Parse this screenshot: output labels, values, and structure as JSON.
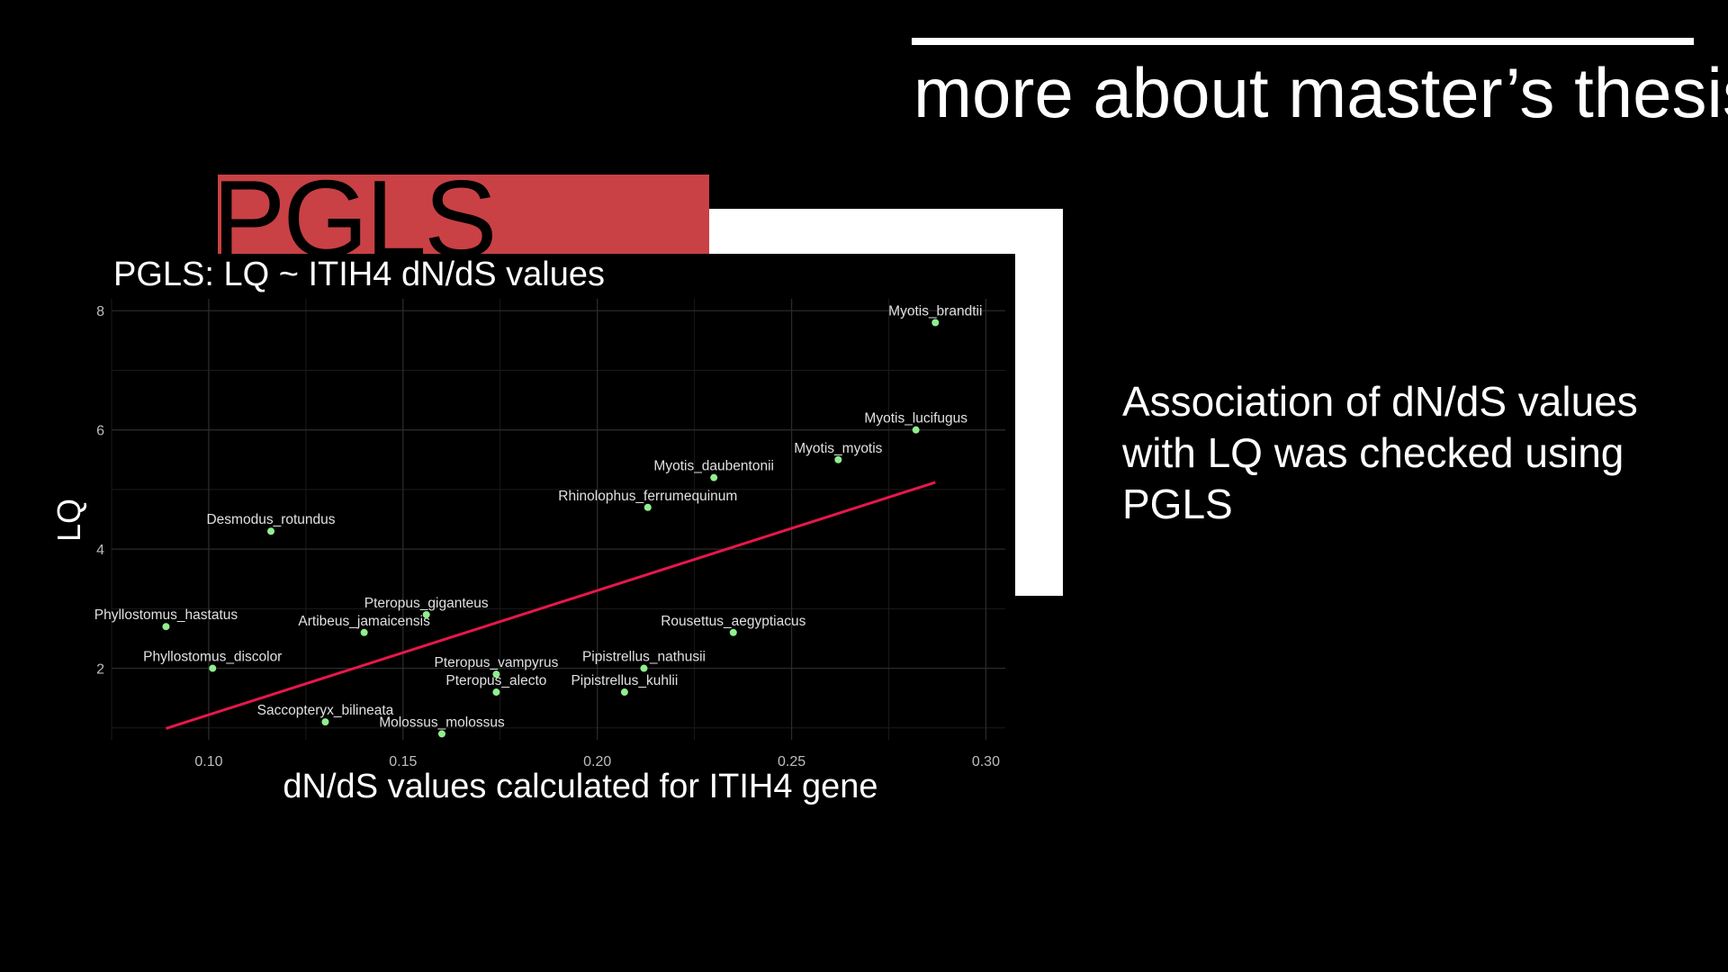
{
  "slide": {
    "title": "more about master’s thesis",
    "section_label": "PGLS",
    "side_text": "Association of dN/dS values with LQ was checked using PGLS"
  },
  "colors": {
    "background": "#000000",
    "accent_red": "#c94144",
    "point": "#90ee90",
    "fit_line": "#e8174c",
    "text": "#ffffff",
    "grid": "#2a2a2a",
    "tick_label": "#bdbdbd"
  },
  "chart_data": {
    "type": "scatter",
    "title": "PGLS: LQ ~ ITIH4 dN/dS values",
    "xlabel": "dN/dS values calculated for ITIH4 gene",
    "ylabel": "LQ",
    "xlim": [
      0.075,
      0.305
    ],
    "ylim": [
      0.8,
      8.2
    ],
    "xticks": [
      0.1,
      0.15,
      0.2,
      0.25,
      0.3
    ],
    "xtick_labels": [
      "0.10",
      "0.15",
      "0.20",
      "0.25",
      "0.30"
    ],
    "yticks": [
      2,
      4,
      6,
      8
    ],
    "ytick_labels": [
      "2",
      "4",
      "6",
      "8"
    ],
    "grid": true,
    "points": [
      {
        "label": "Myotis_brandtii",
        "x": 0.287,
        "y": 7.8
      },
      {
        "label": "Myotis_lucifugus",
        "x": 0.282,
        "y": 6.0
      },
      {
        "label": "Myotis_myotis",
        "x": 0.262,
        "y": 5.5
      },
      {
        "label": "Myotis_daubentonii",
        "x": 0.23,
        "y": 5.2
      },
      {
        "label": "Rhinolophus_ferrumequinum",
        "x": 0.213,
        "y": 4.7
      },
      {
        "label": "Desmodus_rotundus",
        "x": 0.116,
        "y": 4.3
      },
      {
        "label": "Pteropus_giganteus",
        "x": 0.156,
        "y": 2.9
      },
      {
        "label": "Phyllostomus_hastatus",
        "x": 0.089,
        "y": 2.7
      },
      {
        "label": "Artibeus_jamaicensis",
        "x": 0.14,
        "y": 2.6
      },
      {
        "label": "Rousettus_aegyptiacus",
        "x": 0.235,
        "y": 2.6
      },
      {
        "label": "Phyllostomus_discolor",
        "x": 0.101,
        "y": 2.0
      },
      {
        "label": "Pipistrellus_nathusii",
        "x": 0.212,
        "y": 2.0
      },
      {
        "label": "Pteropus_vampyrus",
        "x": 0.174,
        "y": 1.9
      },
      {
        "label": "Pteropus_alecto",
        "x": 0.174,
        "y": 1.6
      },
      {
        "label": "Pipistrellus_kuhlii",
        "x": 0.207,
        "y": 1.6
      },
      {
        "label": "Saccopteryx_bilineata",
        "x": 0.13,
        "y": 1.1
      },
      {
        "label": "Molossus_molossus",
        "x": 0.16,
        "y": 0.9
      }
    ],
    "fit_line": {
      "x": [
        0.089,
        0.287
      ],
      "y": [
        0.99,
        5.12
      ]
    }
  }
}
